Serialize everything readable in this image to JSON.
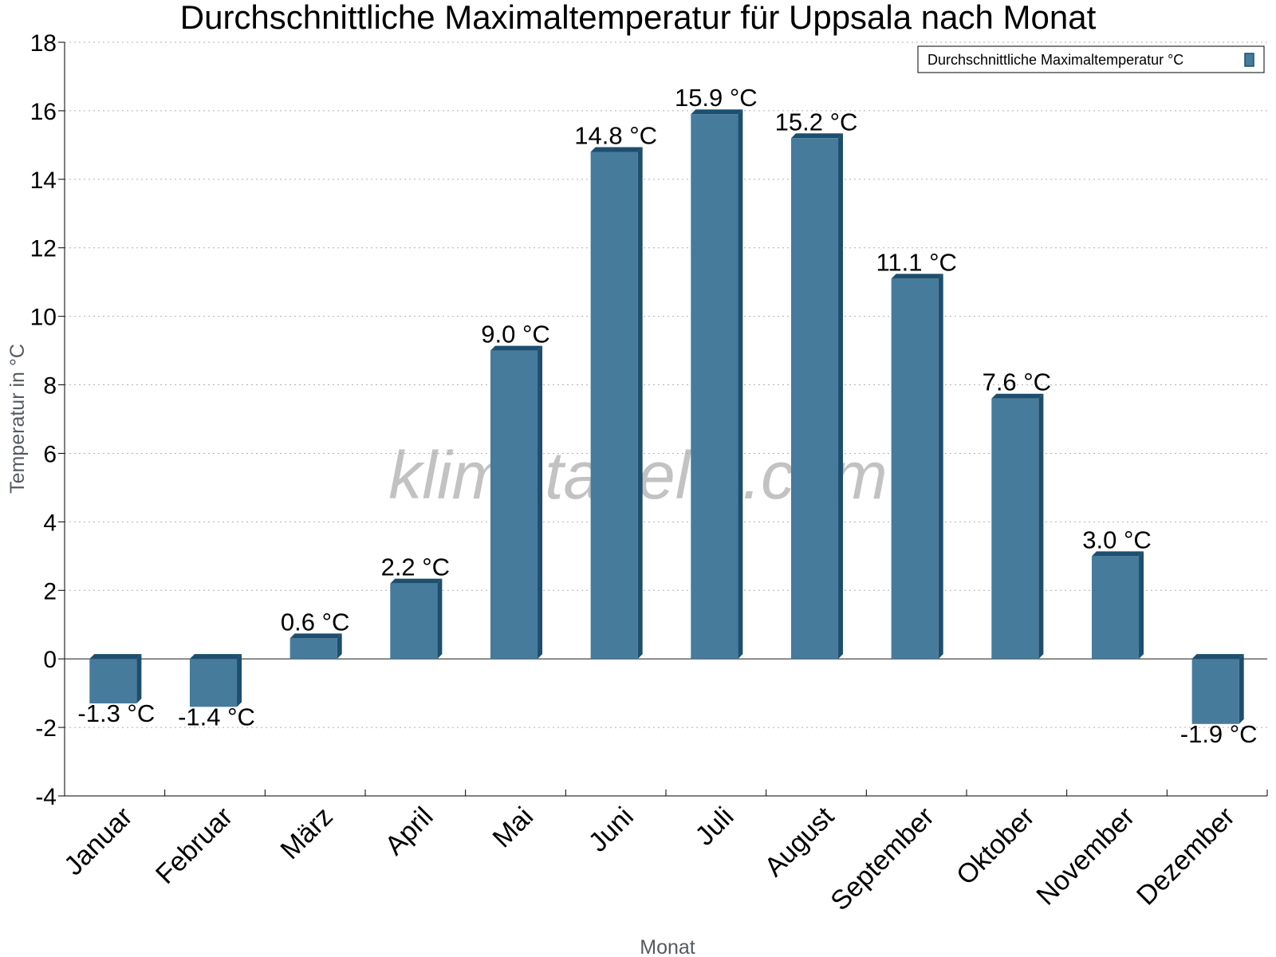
{
  "chart_data": {
    "type": "bar",
    "title": "Durchschnittliche Maximaltemperatur für Uppsala nach Monat",
    "xlabel": "Monat",
    "ylabel": "Temperatur in °C",
    "categories": [
      "Januar",
      "Februar",
      "März",
      "April",
      "Mai",
      "Juni",
      "Juli",
      "August",
      "September",
      "Oktober",
      "November",
      "Dezember"
    ],
    "series": [
      {
        "name": "Durchschnittliche Maximaltemperatur °C",
        "values": [
          -1.3,
          -1.4,
          0.6,
          2.2,
          9.0,
          14.8,
          15.9,
          15.2,
          11.1,
          7.6,
          3.0,
          -1.9
        ],
        "labels": [
          "-1.3 °C",
          "-1.4 °C",
          "0.6 °C",
          "2.2 °C",
          "9.0 °C",
          "14.8 °C",
          "15.9 °C",
          "15.2 °C",
          "11.1 °C",
          "7.6 °C",
          "3.0 °C",
          "-1.9 °C"
        ]
      }
    ],
    "ylim": [
      -4,
      18
    ],
    "yticks": [
      "-4",
      "-2",
      "0",
      "2",
      "4",
      "6",
      "8",
      "10",
      "12",
      "14",
      "16",
      "18"
    ],
    "grid": true,
    "legend_position": "top-right",
    "colors": {
      "bar": "#467b9c",
      "bar_side": "#1e4e6d"
    }
  },
  "watermark": "klimatabelle.com"
}
